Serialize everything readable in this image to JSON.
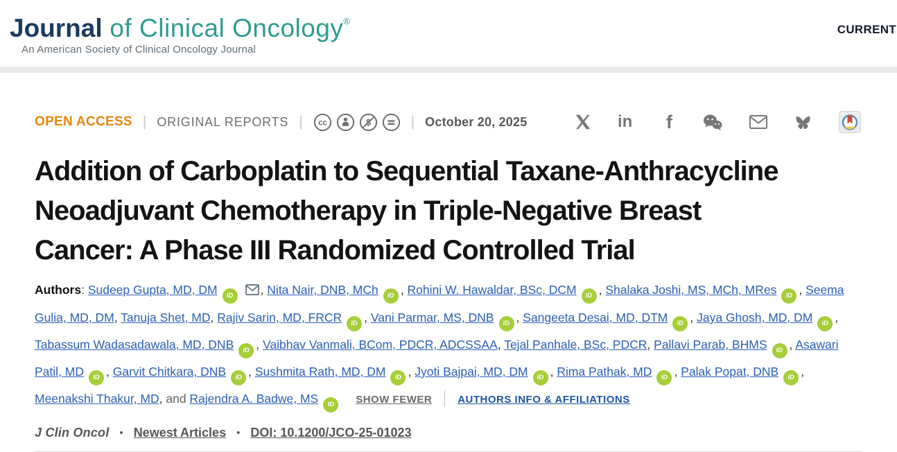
{
  "header": {
    "logo": {
      "word_bold": "Journal",
      "word_rest": " of Clinical Oncology",
      "registered": "®",
      "tagline": "An American Society of Clinical Oncology Journal"
    },
    "nav": {
      "current_label": "CURRENT"
    }
  },
  "meta": {
    "open_access": "OPEN ACCESS",
    "separator": "|",
    "article_type": "ORIGINAL REPORTS",
    "license_icons": [
      "cc-icon",
      "cc-by-person-icon",
      "cc-nc-dollar-icon",
      "cc-nd-equals-icon"
    ],
    "date": "October 20, 2025",
    "share_icons": [
      "x-icon",
      "linkedin-icon",
      "facebook-icon",
      "wechat-icon",
      "email-icon",
      "bluesky-icon",
      "reference-manager-badge-icon"
    ]
  },
  "title": {
    "lines": [
      "Addition of Carboplatin to Sequential Taxane-Anthracycline",
      "Neoadjuvant Chemotherapy in Triple-Negative Breast",
      "Cancer: A Phase III Randomized Controlled Trial"
    ]
  },
  "authors": {
    "label": "Authors",
    "label_colon": ": ",
    "and_word": "and ",
    "orcid_label": "iD",
    "show_fewer": "SHOW FEWER",
    "info_link": "AUTHORS INFO & AFFILIATIONS",
    "list": [
      {
        "name": "Sudeep Gupta, MD, DM",
        "orcid": true,
        "email": true
      },
      {
        "name": "Nita Nair, DNB, MCh",
        "orcid": true
      },
      {
        "name": "Rohini W. Hawaldar, BSc, DCM",
        "orcid": true
      },
      {
        "name": "Shalaka Joshi, MS, MCh, MRes",
        "orcid": true
      },
      {
        "name": "Seema Gulia, MD, DM",
        "orcid": false
      },
      {
        "name": "Tanuja Shet, MD",
        "orcid": false
      },
      {
        "name": "Rajiv Sarin, MD, FRCR",
        "orcid": true
      },
      {
        "name": "Vani Parmar, MS, DNB",
        "orcid": true
      },
      {
        "name": "Sangeeta Desai, MD, DTM",
        "orcid": true
      },
      {
        "name": "Jaya Ghosh, MD, DM",
        "orcid": true
      },
      {
        "name": "Tabassum Wadasadawala, MD, DNB",
        "orcid": true
      },
      {
        "name": "Vaibhav Vanmali, BCom, PDCR, ADCSSAA",
        "orcid": false
      },
      {
        "name": "Tejal Panhale, BSc, PDCR",
        "orcid": false
      },
      {
        "name": "Pallavi Parab, BHMS",
        "orcid": true
      },
      {
        "name": "Asawari Patil, MD",
        "orcid": true
      },
      {
        "name": "Garvit Chitkara, DNB",
        "orcid": true
      },
      {
        "name": "Sushmita Rath, MD, DM",
        "orcid": true
      },
      {
        "name": "Jyoti Bajpai, MD, DM",
        "orcid": true
      },
      {
        "name": "Rima Pathak, MD",
        "orcid": true
      },
      {
        "name": "Palak Popat, DNB",
        "orcid": true
      },
      {
        "name": "Meenakshi Thakur, MD",
        "orcid": false
      },
      {
        "name": "Rajendra A. Badwe, MS",
        "orcid": true,
        "prefix": true
      }
    ]
  },
  "citation": {
    "journal": "J Clin Oncol",
    "bullet": "•",
    "newest_articles": "Newest Articles",
    "doi": "DOI: 10.1200/JCO-25-01023"
  },
  "colors": {
    "accent_orange": "#E8860D",
    "logo_navy": "#1B3A5F",
    "logo_teal": "#2D9C8F",
    "link_blue": "#2B5FB3",
    "info_link_blue": "#1A56A0",
    "orcid_green": "#A6CE39",
    "gray_text": "#6E6E6E",
    "divider_band": "#EBEBEB"
  }
}
